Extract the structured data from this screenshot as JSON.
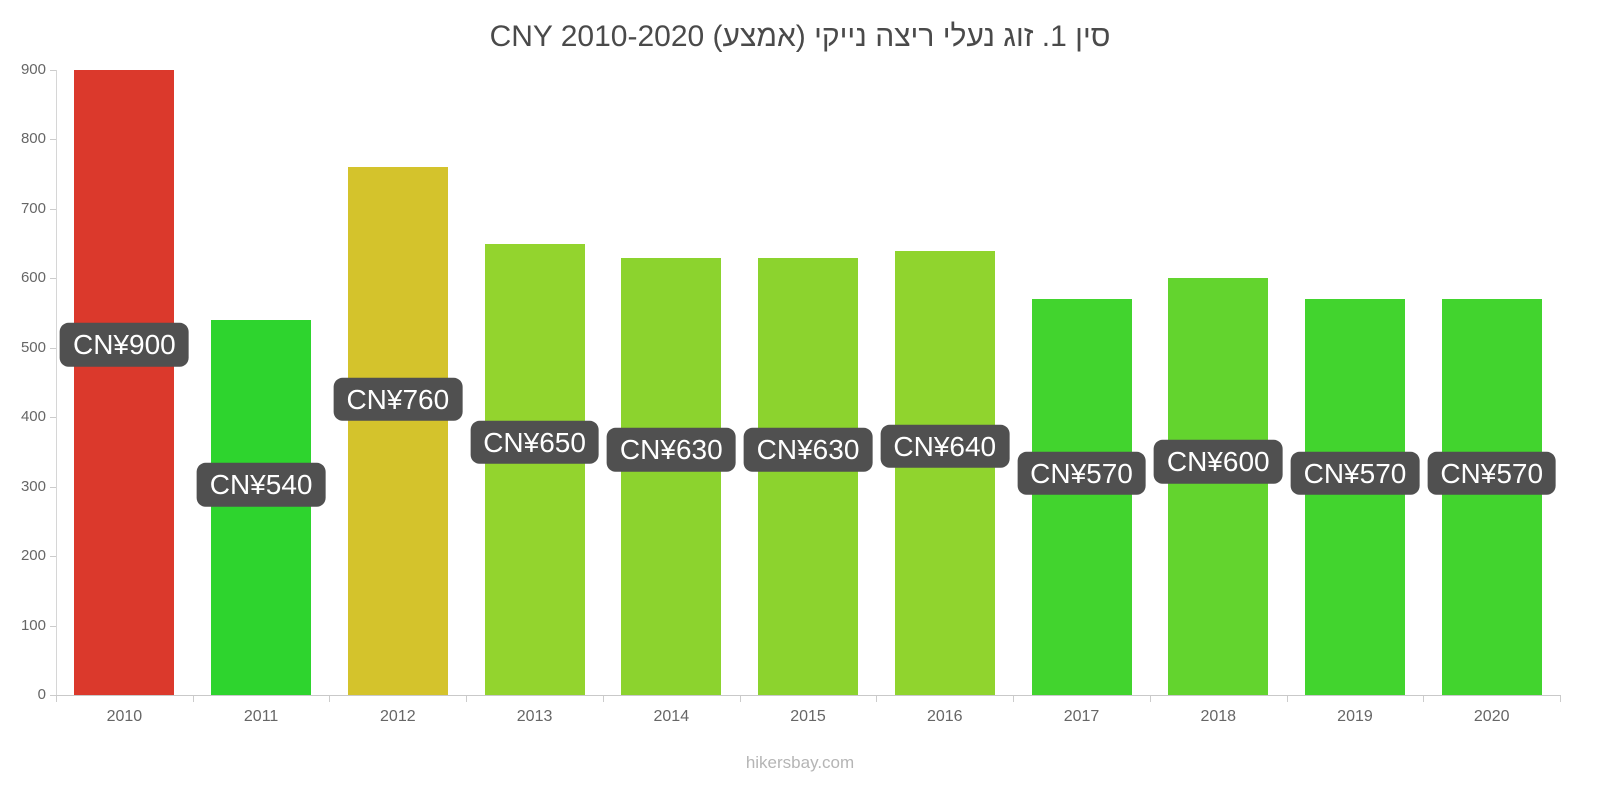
{
  "title": "סין 1. זוג נעלי ריצה נייקי (אמצע) CNY 2010-2020",
  "footer": "hikersbay.com",
  "chart_data": {
    "type": "bar",
    "title": "סין 1. זוג נעלי ריצה נייקי (אמצע) CNY 2010-2020",
    "categories": [
      "2010",
      "2011",
      "2012",
      "2013",
      "2014",
      "2015",
      "2016",
      "2017",
      "2018",
      "2019",
      "2020"
    ],
    "values": [
      900,
      540,
      760,
      650,
      630,
      630,
      640,
      570,
      600,
      570,
      570
    ],
    "bar_labels": [
      "CN¥900",
      "CN¥540",
      "CN¥760",
      "CN¥650",
      "CN¥630",
      "CN¥630",
      "CN¥640",
      "CN¥570",
      "CN¥600",
      "CN¥570",
      "CN¥570"
    ],
    "bar_colors": [
      "#db392c",
      "#2ed42e",
      "#d4c32c",
      "#93d42e",
      "#8cd32e",
      "#8cd32e",
      "#90d42e",
      "#42d42e",
      "#63d42e",
      "#42d42e",
      "#42d42e"
    ],
    "currency": "CNY",
    "xlabel": "",
    "ylabel": "",
    "ylim": [
      0,
      900
    ],
    "ytick_step": 100,
    "yticks": [
      "0",
      "100",
      "200",
      "300",
      "400",
      "500",
      "600",
      "700",
      "800",
      "900"
    ],
    "grid": false,
    "legend": false,
    "label_box_color": "#505050",
    "label_text_color": "#ffffff",
    "axis_color": "#cccccc",
    "tick_label_color": "#666666"
  }
}
